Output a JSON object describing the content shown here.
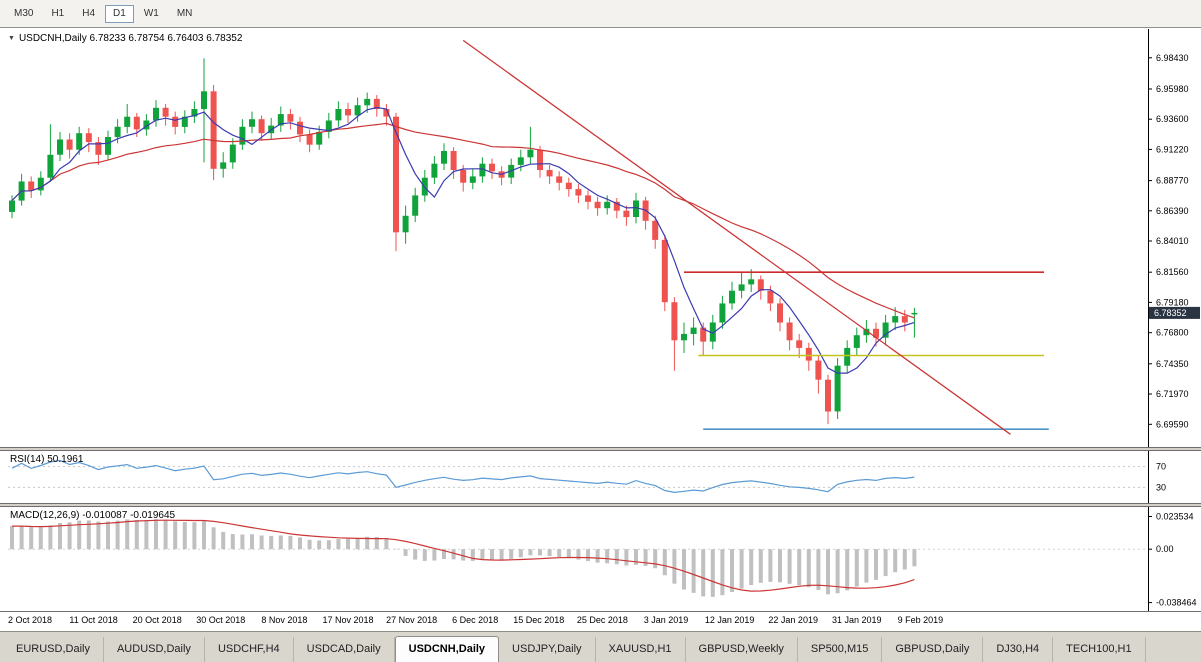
{
  "toolbar": {
    "timeframes": [
      {
        "label": "M30",
        "active": false
      },
      {
        "label": "H1",
        "active": false
      },
      {
        "label": "H4",
        "active": false
      },
      {
        "label": "D1",
        "active": true
      },
      {
        "label": "W1",
        "active": false
      },
      {
        "label": "MN",
        "active": false
      }
    ]
  },
  "chart": {
    "title_line": "USDCNH,Daily 6.78233 6.78754 6.76403 6.78352",
    "symbol": "USDCNH",
    "period": "Daily",
    "open": "6.78233",
    "high": "6.78754",
    "low": "6.76403",
    "close": "6.78352",
    "current_price": "6.78352",
    "price_ticks": [
      "6.98430",
      "6.95980",
      "6.93600",
      "6.91220",
      "6.88770",
      "6.86390",
      "6.84010",
      "6.81560",
      "6.79180",
      "6.76800",
      "6.74350",
      "6.71970",
      "6.69590"
    ],
    "dates": [
      "2 Oct 2018",
      "11 Oct 2018",
      "20 Oct 2018",
      "30 Oct 2018",
      "8 Nov 2018",
      "17 Nov 2018",
      "27 Nov 2018",
      "6 Dec 2018",
      "15 Dec 2018",
      "25 Dec 2018",
      "3 Jan 2019",
      "12 Jan 2019",
      "22 Jan 2019",
      "31 Jan 2019",
      "9 Feb 2019"
    ]
  },
  "rsi": {
    "label": "RSI(14) 50.1961",
    "levels": [
      "70",
      "30"
    ]
  },
  "macd": {
    "label": "MACD(12,26,9) -0.010087 -0.019645",
    "ticks": [
      "0.023534",
      "0.00",
      "-0.038464"
    ]
  },
  "tabs": [
    {
      "label": "EURUSD,Daily",
      "active": false
    },
    {
      "label": "AUDUSD,Daily",
      "active": false
    },
    {
      "label": "USDCHF,H4",
      "active": false
    },
    {
      "label": "USDCAD,Daily",
      "active": false
    },
    {
      "label": "USDCNH,Daily",
      "active": true
    },
    {
      "label": "USDJPY,Daily",
      "active": false
    },
    {
      "label": "XAUUSD,H1",
      "active": false
    },
    {
      "label": "GBPUSD,Weekly",
      "active": false
    },
    {
      "label": "SP500,M15",
      "active": false
    },
    {
      "label": "GBPUSD,Daily",
      "active": false
    },
    {
      "label": "DJ30,H4",
      "active": false
    },
    {
      "label": "TECH100,H1",
      "active": false
    }
  ],
  "colors": {
    "up": "#11a33b",
    "down": "#ef5350",
    "ma_fast": "#3b3bb0",
    "ma_slow": "#cc3535",
    "trendline": "#cc3535",
    "hline_red": "#cc2b2b",
    "hline_yellow": "#c3c31e",
    "hline_blue": "#4e94c8",
    "rsi_line": "#5b9bd5",
    "macd_hist": "#c0c0c0",
    "macd_signal": "#cc3535",
    "badge_bg": "#2b3442"
  },
  "chart_data": {
    "type": "candlestick",
    "symbol": "USDCNH",
    "timeframe": "Daily",
    "price_range": [
      6.678,
      7.007
    ],
    "candles": [
      [
        6.863,
        6.876,
        6.858,
        6.872
      ],
      [
        6.872,
        6.893,
        6.868,
        6.887
      ],
      [
        6.887,
        6.891,
        6.874,
        6.88
      ],
      [
        6.88,
        6.895,
        6.876,
        6.89
      ],
      [
        6.89,
        6.932,
        6.887,
        6.908
      ],
      [
        6.908,
        6.926,
        6.903,
        6.92
      ],
      [
        6.92,
        6.925,
        6.905,
        6.912
      ],
      [
        6.912,
        6.93,
        6.908,
        6.925
      ],
      [
        6.925,
        6.929,
        6.91,
        6.918
      ],
      [
        6.918,
        6.922,
        6.9,
        6.908
      ],
      [
        6.908,
        6.927,
        6.904,
        6.922
      ],
      [
        6.922,
        6.936,
        6.917,
        6.93
      ],
      [
        6.93,
        6.948,
        6.925,
        6.938
      ],
      [
        6.938,
        6.941,
        6.922,
        6.928
      ],
      [
        6.928,
        6.94,
        6.923,
        6.935
      ],
      [
        6.935,
        6.951,
        6.93,
        6.945
      ],
      [
        6.945,
        6.948,
        6.931,
        6.938
      ],
      [
        6.938,
        6.942,
        6.924,
        6.93
      ],
      [
        6.93,
        6.943,
        6.925,
        6.938
      ],
      [
        6.938,
        6.95,
        6.933,
        6.944
      ],
      [
        6.944,
        6.984,
        6.902,
        6.958
      ],
      [
        6.958,
        6.963,
        6.888,
        6.897
      ],
      [
        6.897,
        6.91,
        6.89,
        6.902
      ],
      [
        6.902,
        6.921,
        6.897,
        6.916
      ],
      [
        6.916,
        6.936,
        6.912,
        6.93
      ],
      [
        6.93,
        6.942,
        6.925,
        6.936
      ],
      [
        6.936,
        6.939,
        6.919,
        6.925
      ],
      [
        6.925,
        6.937,
        6.92,
        6.931
      ],
      [
        6.931,
        6.946,
        6.926,
        6.94
      ],
      [
        6.94,
        6.944,
        6.928,
        6.934
      ],
      [
        6.934,
        6.938,
        6.918,
        6.924
      ],
      [
        6.924,
        6.928,
        6.91,
        6.916
      ],
      [
        6.916,
        6.931,
        6.912,
        6.926
      ],
      [
        6.926,
        6.941,
        6.921,
        6.935
      ],
      [
        6.935,
        6.95,
        6.93,
        6.944
      ],
      [
        6.944,
        6.949,
        6.933,
        6.939
      ],
      [
        6.939,
        6.953,
        6.934,
        6.947
      ],
      [
        6.947,
        6.957,
        6.941,
        6.952
      ],
      [
        6.952,
        6.955,
        6.938,
        6.944
      ],
      [
        6.944,
        6.948,
        6.931,
        6.938
      ],
      [
        6.938,
        6.941,
        6.832,
        6.847
      ],
      [
        6.847,
        6.868,
        6.838,
        6.86
      ],
      [
        6.86,
        6.882,
        6.855,
        6.876
      ],
      [
        6.876,
        6.896,
        6.871,
        6.89
      ],
      [
        6.89,
        6.907,
        6.885,
        6.901
      ],
      [
        6.901,
        6.917,
        6.896,
        6.911
      ],
      [
        6.911,
        6.914,
        6.889,
        6.896
      ],
      [
        6.896,
        6.9,
        6.879,
        6.886
      ],
      [
        6.886,
        6.897,
        6.881,
        6.891
      ],
      [
        6.891,
        6.906,
        6.886,
        6.901
      ],
      [
        6.901,
        6.905,
        6.889,
        6.895
      ],
      [
        6.895,
        6.899,
        6.884,
        6.89
      ],
      [
        6.89,
        6.905,
        6.885,
        6.9
      ],
      [
        6.9,
        6.912,
        6.895,
        6.906
      ],
      [
        6.906,
        6.93,
        6.901,
        6.912
      ],
      [
        6.912,
        6.915,
        6.89,
        6.896
      ],
      [
        6.896,
        6.9,
        6.885,
        6.891
      ],
      [
        6.891,
        6.895,
        6.88,
        6.886
      ],
      [
        6.886,
        6.89,
        6.875,
        6.881
      ],
      [
        6.881,
        6.885,
        6.87,
        6.876
      ],
      [
        6.876,
        6.88,
        6.865,
        6.871
      ],
      [
        6.871,
        6.875,
        6.86,
        6.866
      ],
      [
        6.866,
        6.876,
        6.861,
        6.871
      ],
      [
        6.871,
        6.874,
        6.858,
        6.864
      ],
      [
        6.864,
        6.868,
        6.852,
        6.859
      ],
      [
        6.859,
        6.878,
        6.854,
        6.872
      ],
      [
        6.872,
        6.875,
        6.849,
        6.856
      ],
      [
        6.856,
        6.86,
        6.834,
        6.841
      ],
      [
        6.841,
        6.845,
        6.785,
        6.792
      ],
      [
        6.792,
        6.796,
        6.738,
        6.762
      ],
      [
        6.762,
        6.776,
        6.752,
        6.767
      ],
      [
        6.767,
        6.78,
        6.758,
        6.772
      ],
      [
        6.772,
        6.776,
        6.75,
        6.761
      ],
      [
        6.761,
        6.782,
        6.755,
        6.776
      ],
      [
        6.776,
        6.797,
        6.771,
        6.791
      ],
      [
        6.791,
        6.808,
        6.786,
        6.801
      ],
      [
        6.801,
        6.815,
        6.795,
        6.806
      ],
      [
        6.806,
        6.818,
        6.8,
        6.81
      ],
      [
        6.81,
        6.813,
        6.794,
        6.801
      ],
      [
        6.801,
        6.805,
        6.785,
        6.791
      ],
      [
        6.791,
        6.795,
        6.769,
        6.776
      ],
      [
        6.776,
        6.78,
        6.754,
        6.762
      ],
      [
        6.762,
        6.767,
        6.748,
        6.756
      ],
      [
        6.756,
        6.76,
        6.738,
        6.746
      ],
      [
        6.746,
        6.75,
        6.72,
        6.731
      ],
      [
        6.731,
        6.735,
        6.696,
        6.706
      ],
      [
        6.706,
        6.748,
        6.7,
        6.742
      ],
      [
        6.742,
        6.762,
        6.736,
        6.756
      ],
      [
        6.756,
        6.772,
        6.75,
        6.766
      ],
      [
        6.766,
        6.778,
        6.76,
        6.771
      ],
      [
        6.771,
        6.776,
        6.757,
        6.764
      ],
      [
        6.764,
        6.782,
        6.758,
        6.776
      ],
      [
        6.776,
        6.788,
        6.77,
        6.781
      ],
      [
        6.781,
        6.786,
        6.769,
        6.776
      ],
      [
        6.78233,
        6.78754,
        6.76403,
        6.78352
      ]
    ],
    "overlays": {
      "ma_fast_period": 5,
      "ma_slow_period": 30,
      "trendline": {
        "i1": 47,
        "p1": 6.998,
        "i2": 104,
        "p2": 6.688
      },
      "hlines": [
        {
          "price": 6.8156,
          "i1": 70,
          "i2": 107.5,
          "color_key": "hline_red"
        },
        {
          "price": 6.75,
          "i1": 71.5,
          "i2": 107.5,
          "color_key": "hline_yellow"
        },
        {
          "price": 6.692,
          "i1": 72,
          "i2": 108,
          "color_key": "hline_blue"
        }
      ]
    },
    "indicators": {
      "rsi": {
        "period": 14,
        "current": 50.1961,
        "scale": [
          0,
          100
        ],
        "levels": [
          70,
          30
        ]
      },
      "macd": {
        "fast": 12,
        "slow": 26,
        "signal": 9,
        "current": -0.010087,
        "signal_current": -0.019645,
        "scale": [
          0.023534,
          0.0,
          -0.038464
        ]
      }
    }
  }
}
